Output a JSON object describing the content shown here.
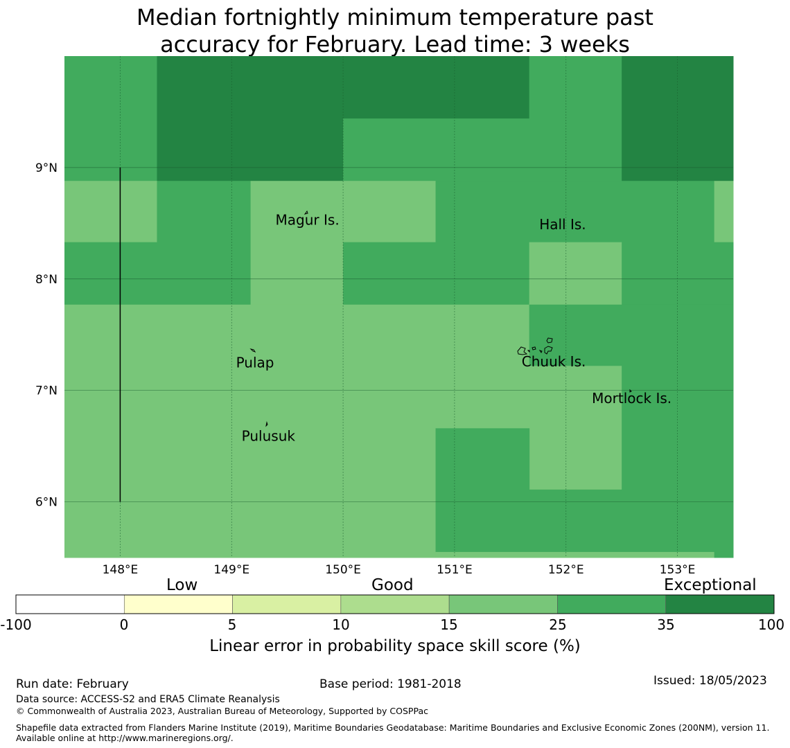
{
  "title": {
    "line1": "Median fortnightly minimum temperature past",
    "line2": "accuracy for February. Lead time: 3 weeks"
  },
  "map": {
    "lon_range": [
      147.5,
      153.5
    ],
    "lat_range": [
      5.5,
      10.0
    ],
    "lon_ticks": [
      148,
      149,
      150,
      151,
      152,
      153
    ],
    "lon_tick_labels": [
      "148°E",
      "149°E",
      "150°E",
      "151°E",
      "152°E",
      "153°E"
    ],
    "lat_ticks": [
      9,
      8,
      7,
      6
    ],
    "lat_tick_labels": [
      "9°N",
      "8°N",
      "7°N",
      "6°N"
    ],
    "class_colors": [
      "#ffffff",
      "#ffffcc",
      "#d9f0a3",
      "#addd8e",
      "#78c679",
      "#41ab5d",
      "#238443"
    ],
    "cells": [
      {
        "lon": [
          147.5,
          148.33
        ],
        "lat": [
          8.88,
          10.0
        ],
        "class": 5
      },
      {
        "lon": [
          148.33,
          150.0
        ],
        "lat": [
          8.88,
          10.0
        ],
        "class": 6
      },
      {
        "lon": [
          150.0,
          151.67
        ],
        "lat": [
          9.44,
          10.0
        ],
        "class": 6
      },
      {
        "lon": [
          150.0,
          151.67
        ],
        "lat": [
          8.88,
          9.44
        ],
        "class": 5
      },
      {
        "lon": [
          151.67,
          152.5
        ],
        "lat": [
          8.88,
          10.0
        ],
        "class": 5
      },
      {
        "lon": [
          152.5,
          153.5
        ],
        "lat": [
          8.88,
          10.0
        ],
        "class": 6
      },
      {
        "lon": [
          147.5,
          148.33
        ],
        "lat": [
          8.33,
          8.88
        ],
        "class": 4
      },
      {
        "lon": [
          148.33,
          149.17
        ],
        "lat": [
          7.77,
          8.88
        ],
        "class": 5
      },
      {
        "lon": [
          149.17,
          150.0
        ],
        "lat": [
          7.77,
          8.88
        ],
        "class": 4
      },
      {
        "lon": [
          150.0,
          150.83
        ],
        "lat": [
          8.33,
          8.88
        ],
        "class": 4
      },
      {
        "lon": [
          150.83,
          153.33
        ],
        "lat": [
          8.33,
          8.88
        ],
        "class": 5
      },
      {
        "lon": [
          153.33,
          153.5
        ],
        "lat": [
          8.33,
          8.88
        ],
        "class": 4
      },
      {
        "lon": [
          147.5,
          148.33
        ],
        "lat": [
          7.77,
          8.33
        ],
        "class": 5
      },
      {
        "lon": [
          150.0,
          151.67
        ],
        "lat": [
          7.77,
          8.33
        ],
        "class": 5
      },
      {
        "lon": [
          151.67,
          152.5
        ],
        "lat": [
          7.77,
          8.33
        ],
        "class": 4
      },
      {
        "lon": [
          152.5,
          153.5
        ],
        "lat": [
          7.77,
          8.33
        ],
        "class": 5
      },
      {
        "lon": [
          147.5,
          151.67
        ],
        "lat": [
          6.66,
          7.77
        ],
        "class": 4
      },
      {
        "lon": [
          151.67,
          152.5
        ],
        "lat": [
          7.22,
          7.77
        ],
        "class": 5
      },
      {
        "lon": [
          151.67,
          152.5
        ],
        "lat": [
          6.11,
          7.22
        ],
        "class": 4
      },
      {
        "lon": [
          152.5,
          153.5
        ],
        "lat": [
          5.55,
          7.77
        ],
        "class": 5
      },
      {
        "lon": [
          147.5,
          150.83
        ],
        "lat": [
          5.5,
          6.66
        ],
        "class": 4
      },
      {
        "lon": [
          150.83,
          151.67
        ],
        "lat": [
          5.55,
          6.66
        ],
        "class": 5
      },
      {
        "lon": [
          151.67,
          152.5
        ],
        "lat": [
          5.55,
          6.11
        ],
        "class": 5
      },
      {
        "lon": [
          150.83,
          153.33
        ],
        "lat": [
          5.5,
          5.55
        ],
        "class": 4
      },
      {
        "lon": [
          153.33,
          153.5
        ],
        "lat": [
          5.5,
          5.55
        ],
        "class": 5
      }
    ],
    "boundary_line": {
      "lon": 148.0,
      "lat": [
        6.0,
        9.0
      ]
    },
    "place_labels": [
      {
        "name": "Magur Is.",
        "lon": 149.68,
        "lat": 8.53
      },
      {
        "name": "Hall Is.",
        "lon": 151.97,
        "lat": 8.49
      },
      {
        "name": "Pulap",
        "lon": 149.21,
        "lat": 7.25
      },
      {
        "name": "Chuuk Is.",
        "lon": 151.89,
        "lat": 7.26
      },
      {
        "name": "Mortlock Is.",
        "lon": 152.59,
        "lat": 6.93
      },
      {
        "name": "Pulusuk",
        "lon": 149.33,
        "lat": 6.59
      }
    ]
  },
  "colorbar": {
    "category_labels": [
      "Low",
      "Good",
      "Exceptional"
    ],
    "tick_labels": [
      "-100",
      "0",
      "5",
      "10",
      "15",
      "25",
      "35",
      "100"
    ],
    "segment_colors": [
      "#ffffff",
      "#ffffcc",
      "#d9f0a3",
      "#addd8e",
      "#78c679",
      "#41ab5d",
      "#238443"
    ],
    "title": "Linear error in probability space skill score (%)"
  },
  "footer": {
    "run_date": "Run date: February",
    "base_period": "Base period: 1981-2018",
    "issued": "Issued: 18/05/2023",
    "data_source": "Data source: ACCESS-S2 and ERA5 Climate Reanalysis",
    "copyright": "© Commonwealth of Australia 2023, Australian Bureau of Meteorology, Supported by COSPPac",
    "shapefile_note": "Shapefile data extracted from Flanders Marine Institute (2019), Maritime Boundaries Geodatabase: Maritime Boundaries and Exclusive Economic Zones (200NM), version 11. Available online at http://www.marineregions.org/."
  }
}
